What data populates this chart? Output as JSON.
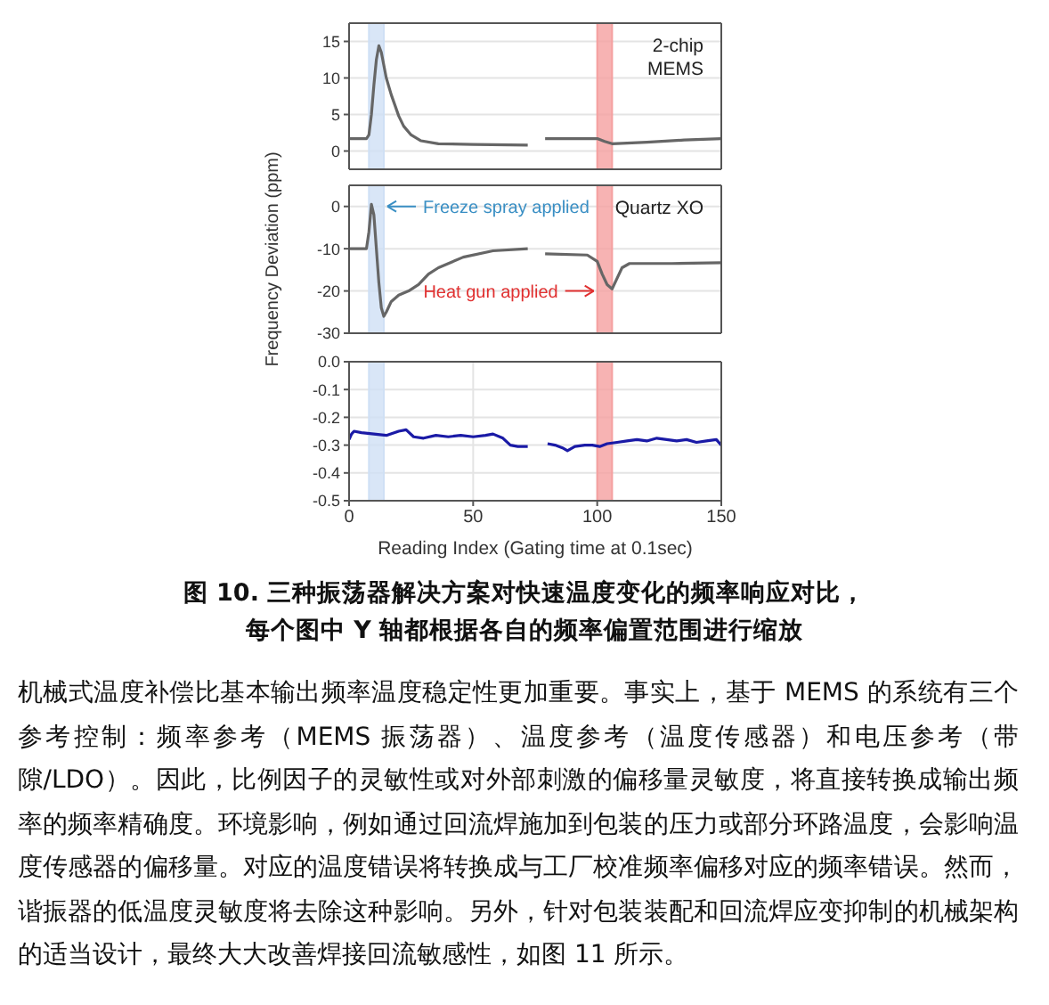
{
  "chart_data": [
    {
      "type": "line",
      "xlim": [
        0,
        150
      ],
      "xticks": [
        0,
        50,
        100,
        150
      ],
      "ylim": [
        -2.5,
        17.5
      ],
      "yticks": [
        0,
        5,
        10,
        15
      ],
      "grid": true,
      "tick_labels": "y",
      "marker": "none",
      "line_style": "solid",
      "bands": [
        {
          "axis": "x",
          "from": 8,
          "to": 14,
          "color": "#cfe0f5"
        },
        {
          "axis": "x",
          "from": 100,
          "to": 106,
          "color": "#f5a0a0"
        }
      ],
      "annotations": [
        "2-chip\nMEMS"
      ],
      "series": [
        {
          "color": "#666666",
          "x": [
            0,
            7,
            8,
            9,
            10,
            11,
            12,
            13,
            15,
            17,
            20,
            22,
            25,
            29,
            36,
            50,
            72,
            76,
            79,
            90,
            100,
            103,
            106,
            120,
            135,
            150
          ],
          "values": [
            1.7,
            1.7,
            2.2,
            5,
            9,
            12.5,
            14.4,
            13.5,
            10,
            7.7,
            4.8,
            3.4,
            2.2,
            1.4,
            1.0,
            0.9,
            0.8,
            null,
            1.7,
            1.7,
            1.7,
            1.3,
            1.0,
            1.2,
            1.5,
            1.7
          ]
        }
      ]
    },
    {
      "type": "line",
      "ylabel": "Frequency Deviation (ppm)",
      "xlim": [
        0,
        150
      ],
      "xticks": [
        0,
        50,
        100,
        150
      ],
      "ylim": [
        -30,
        5
      ],
      "yticks": [
        -30,
        -20,
        -10,
        0
      ],
      "grid": true,
      "tick_labels": "y",
      "marker": "none",
      "line_style": "solid",
      "bands": [
        {
          "axis": "x",
          "from": 8,
          "to": 14,
          "color": "#cfe0f5"
        },
        {
          "axis": "x",
          "from": 100,
          "to": 106,
          "color": "#f5a0a0"
        }
      ],
      "annotations": [
        "Quartz XO",
        {
          "text": "Freeze spray applied",
          "x": 14,
          "y": 0
        },
        {
          "text": "Heat gun applied",
          "x": 100,
          "y": -20
        }
      ],
      "series": [
        {
          "color": "#666666",
          "x": [
            0,
            7,
            8,
            9,
            10,
            11,
            12,
            13,
            14,
            15,
            17,
            20,
            24,
            28,
            32,
            36,
            46,
            58,
            72,
            76,
            79,
            96,
            100,
            102,
            104,
            106,
            108,
            110,
            113,
            130,
            150
          ],
          "values": [
            -10,
            -10,
            -6,
            0.5,
            -2,
            -10,
            -18,
            -24,
            -26,
            -25,
            -22.5,
            -21,
            -20,
            -18.5,
            -16,
            -14.5,
            -12,
            -10.5,
            -10,
            null,
            -11.2,
            -11.5,
            -13,
            -16,
            -18.5,
            -19.5,
            -17,
            -14.5,
            -13.5,
            -13.5,
            -13.3
          ]
        }
      ]
    },
    {
      "type": "line",
      "xlabel": "Reading Index (Gating time at 0.1sec)",
      "xlim": [
        0,
        150
      ],
      "xticks": [
        0,
        50,
        100,
        150
      ],
      "ylim": [
        -0.5,
        0
      ],
      "yticks": [
        -0.5,
        -0.4,
        -0.3,
        -0.2,
        -0.1,
        {
          "value": 0,
          "label": "0.0"
        }
      ],
      "grid": true,
      "marker": "none",
      "line_style": "solid",
      "bands": [
        {
          "axis": "x",
          "from": 8,
          "to": 14,
          "color": "#cfe0f5"
        },
        {
          "axis": "x",
          "from": 100,
          "to": 106,
          "color": "#f5a0a0"
        }
      ],
      "series": [
        {
          "color": "#1a1aa6",
          "x": [
            0,
            1,
            2,
            5,
            10,
            15,
            20,
            23,
            26,
            30,
            35,
            40,
            45,
            50,
            55,
            58,
            62,
            65,
            68,
            72,
            76,
            80,
            83,
            86,
            88,
            91,
            95,
            98,
            101,
            104,
            108,
            112,
            116,
            120,
            124,
            128,
            132,
            136,
            140,
            144,
            148,
            150
          ],
          "values": [
            -0.28,
            -0.26,
            -0.25,
            -0.255,
            -0.26,
            -0.265,
            -0.25,
            -0.245,
            -0.27,
            -0.275,
            -0.265,
            -0.27,
            -0.265,
            -0.27,
            -0.265,
            -0.26,
            -0.275,
            -0.3,
            -0.305,
            -0.305,
            null,
            -0.295,
            -0.3,
            -0.31,
            -0.32,
            -0.305,
            -0.3,
            -0.3,
            -0.305,
            -0.295,
            -0.29,
            -0.285,
            -0.28,
            -0.285,
            -0.275,
            -0.28,
            -0.285,
            -0.28,
            -0.29,
            -0.285,
            -0.28,
            -0.3
          ]
        }
      ]
    },
    {
      "type": "other",
      "title": "图 10. 三种振荡器解决方案对快速温度变化的频率响应对比，",
      "subtitle": "每个图中 Y 轴都根据各自的频率偏置范围进行缩放",
      "annotations": [
        "机械式温度补偿比基本输出频率温度稳定性更加重要。事实上，基于 MEMS 的系统有三个参考控制：频率参考（MEMS 振荡器）、温度参考（温度传感器）和电压参考（带隙/LDO）。因此，比例因子的灵敏性或对外部刺激的偏移量灵敏度，将直接转换成输出频率的频率精确度。环境影响，例如通过回流焊施加到包装的压力或部分环路温度，会影响温度传感器的偏移量。对应的温度错误将转换成与工厂校准频率偏移对应的频率错误。然而，谐振器的低温度灵敏度将去除这种影响。另外，针对包装装配和回流焊应变抑制的机械架构的适当设计，最终大大改善焊接回流敏感性，如图 11 所示。"
      ]
    }
  ]
}
